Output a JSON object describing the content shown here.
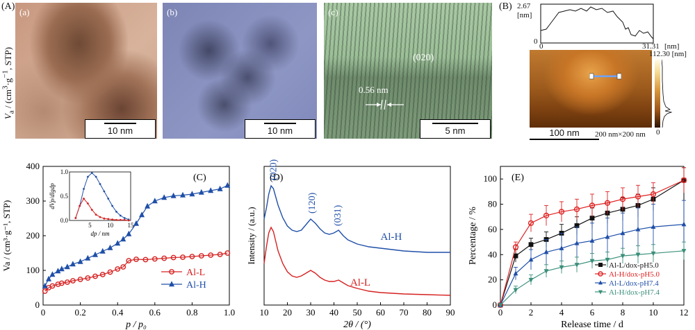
{
  "panel_A_label": "(A)",
  "panel_B_label": "(B)",
  "tem_a": {
    "label": "(a)",
    "scale": "10 nm"
  },
  "tem_b": {
    "label": "(b)",
    "scale": "10 nm"
  },
  "tem_c": {
    "label": "(c)",
    "scale": "5 nm",
    "plane": "(020)",
    "spacing": "0.56 nm"
  },
  "afm": {
    "profile_max": "2.67",
    "profile_unit": "[nm]",
    "profile_zero": "0",
    "profile_x0": "0",
    "profile_xmax": "31.31",
    "profile_xunit": "[nm]",
    "colorbar_max": "112.30 [nm]",
    "colorbar_min": "0",
    "scale": "100 nm",
    "size": "200 nm×200 nm"
  },
  "chart_data": [
    {
      "id": "C",
      "type": "line",
      "panel_label": "(C)",
      "xlabel": "p / p0",
      "ylabel": "Va / (cm3·g−1, STP)",
      "xlim": [
        0,
        1.0
      ],
      "ylim": [
        0,
        400
      ],
      "xticks": [
        "0",
        "0.2",
        "0.4",
        "0.6",
        "0.8",
        "1.0"
      ],
      "yticks": [
        "0",
        "100",
        "200",
        "300",
        "400"
      ],
      "legend": "bottom-right",
      "series": [
        {
          "name": "Al-L",
          "color": "#d62020",
          "x": [
            0.01,
            0.03,
            0.05,
            0.08,
            0.1,
            0.13,
            0.16,
            0.2,
            0.24,
            0.28,
            0.32,
            0.36,
            0.4,
            0.43,
            0.46,
            0.5,
            0.55,
            0.6,
            0.65,
            0.7,
            0.75,
            0.8,
            0.85,
            0.9,
            0.95,
            0.99
          ],
          "y": [
            40,
            50,
            55,
            60,
            63,
            66,
            70,
            74,
            78,
            83,
            88,
            95,
            104,
            110,
            128,
            132,
            131,
            133,
            135,
            137,
            138,
            140,
            142,
            144,
            146,
            150
          ]
        },
        {
          "name": "Al-H",
          "color": "#1f4fa8",
          "x": [
            0.01,
            0.03,
            0.05,
            0.08,
            0.1,
            0.13,
            0.16,
            0.2,
            0.24,
            0.28,
            0.32,
            0.36,
            0.4,
            0.43,
            0.46,
            0.5,
            0.53,
            0.56,
            0.6,
            0.65,
            0.7,
            0.75,
            0.8,
            0.85,
            0.9,
            0.95,
            0.99
          ],
          "y": [
            55,
            75,
            88,
            98,
            104,
            110,
            118,
            125,
            135,
            145,
            155,
            165,
            178,
            190,
            205,
            235,
            260,
            285,
            300,
            310,
            315,
            317,
            320,
            325,
            330,
            335,
            345
          ]
        }
      ],
      "inset": {
        "xlabel": "dp / nm",
        "ylabel": "dVp/dlgdp",
        "xlim": [
          0,
          15
        ],
        "ylim": [
          0,
          1.0
        ],
        "xticks": [
          "5",
          "10",
          "15"
        ],
        "yticks": [
          "0.0",
          "0.5",
          "1.0"
        ],
        "series": [
          {
            "name": "Al-H",
            "color": "#1f4fa8",
            "x": [
              1.5,
              2.5,
              3.5,
              4.5,
              5.5,
              6.5,
              7.5,
              8.5,
              9.5,
              10.5,
              11.5,
              12.5,
              13.5,
              14.5
            ],
            "y": [
              0.05,
              0.3,
              0.65,
              0.9,
              0.98,
              0.9,
              0.75,
              0.6,
              0.45,
              0.3,
              0.18,
              0.1,
              0.05,
              0.02
            ]
          },
          {
            "name": "Al-L",
            "color": "#d62020",
            "x": [
              1.5,
              2.5,
              3.5,
              4.5,
              5.5,
              6.5,
              7.5,
              8.5,
              9.5,
              10.5,
              11.5,
              12.5,
              13.5,
              14.5
            ],
            "y": [
              0.05,
              0.3,
              0.45,
              0.35,
              0.22,
              0.12,
              0.07,
              0.04,
              0.03,
              0.02,
              0.01,
              0.01,
              0.01,
              0.0
            ]
          }
        ]
      }
    },
    {
      "id": "D",
      "type": "line",
      "panel_label": "(D)",
      "xlabel": "2θ / (°)",
      "ylabel": "Intensity / (a.u.)",
      "xlim": [
        10,
        90
      ],
      "xticks": [
        "10",
        "20",
        "30",
        "40",
        "50",
        "60",
        "70",
        "80",
        "90"
      ],
      "annotations": [
        "(020)",
        "(120)",
        "(031)"
      ],
      "series": [
        {
          "name": "Al-H",
          "color": "#1f4fa8",
          "x": [
            10,
            11,
            12,
            13,
            14,
            15,
            16,
            18,
            20,
            22,
            24,
            26,
            28,
            30,
            32,
            34,
            36,
            38,
            40,
            42,
            44,
            46,
            50,
            55,
            60,
            70,
            80,
            90
          ],
          "y": [
            0.62,
            0.7,
            0.8,
            0.86,
            0.84,
            0.78,
            0.72,
            0.63,
            0.57,
            0.54,
            0.53,
            0.54,
            0.58,
            0.62,
            0.59,
            0.55,
            0.52,
            0.51,
            0.52,
            0.54,
            0.5,
            0.47,
            0.44,
            0.42,
            0.41,
            0.39,
            0.38,
            0.38
          ]
        },
        {
          "name": "Al-L",
          "color": "#d62020",
          "x": [
            10,
            11,
            12,
            13,
            14,
            15,
            16,
            18,
            20,
            22,
            24,
            26,
            28,
            30,
            32,
            34,
            36,
            38,
            40,
            42,
            44,
            46,
            50,
            55,
            60,
            70,
            80,
            90
          ],
          "y": [
            0.3,
            0.42,
            0.52,
            0.56,
            0.53,
            0.46,
            0.39,
            0.3,
            0.24,
            0.21,
            0.2,
            0.21,
            0.23,
            0.25,
            0.23,
            0.2,
            0.18,
            0.17,
            0.17,
            0.18,
            0.16,
            0.14,
            0.12,
            0.1,
            0.09,
            0.08,
            0.075,
            0.07
          ]
        }
      ]
    },
    {
      "id": "E",
      "type": "line",
      "panel_label": "(E)",
      "xlabel": "Release time / d",
      "ylabel": "Percentage / %",
      "xlim": [
        0,
        12
      ],
      "ylim": [
        0,
        110
      ],
      "xticks": [
        "0",
        "2",
        "4",
        "6",
        "8",
        "10",
        "12"
      ],
      "yticks": [
        "0",
        "20",
        "40",
        "60",
        "80",
        "100"
      ],
      "legend": "bottom-right",
      "series": [
        {
          "name": "Al-L/dox-pH5.0",
          "color": "#111111",
          "marker": "square",
          "x": [
            0,
            1,
            2,
            3,
            4,
            5,
            6,
            7,
            8,
            9,
            10,
            12
          ],
          "y": [
            0,
            39,
            48,
            52,
            57,
            63,
            69,
            73,
            76,
            79,
            84,
            99
          ],
          "err": [
            0,
            5,
            5,
            6,
            7,
            7,
            8,
            8,
            9,
            9,
            9,
            10
          ]
        },
        {
          "name": "Al-H/dox-pH5.0",
          "color": "#e02020",
          "marker": "circle",
          "x": [
            0,
            1,
            2,
            3,
            4,
            5,
            6,
            7,
            8,
            9,
            10,
            12
          ],
          "y": [
            0,
            46,
            65,
            71,
            74,
            76,
            79,
            81,
            84,
            86,
            88,
            99
          ],
          "err": [
            0,
            4,
            7,
            8,
            8,
            8,
            9,
            9,
            9,
            9,
            9,
            10
          ]
        },
        {
          "name": "Al-L/dox-pH7.4",
          "color": "#1f4fa8",
          "marker": "triangle",
          "x": [
            0,
            1,
            2,
            3,
            4,
            5,
            6,
            7,
            8,
            9,
            10,
            12
          ],
          "y": [
            0,
            25,
            36,
            42,
            45,
            49,
            51,
            54,
            57,
            60,
            62,
            64
          ],
          "err": [
            0,
            5,
            8,
            10,
            12,
            13,
            14,
            15,
            16,
            17,
            18,
            19
          ]
        },
        {
          "name": "Al-H/dox-pH7.4",
          "color": "#3a8f7a",
          "marker": "triangle-down",
          "x": [
            0,
            1,
            2,
            3,
            4,
            5,
            6,
            7,
            8,
            9,
            10,
            12
          ],
          "y": [
            0,
            12,
            20,
            27,
            30,
            32,
            35,
            36,
            39,
            40,
            41,
            43
          ],
          "err": [
            0,
            3,
            4,
            5,
            5,
            6,
            6,
            6,
            6,
            7,
            7,
            7
          ]
        }
      ]
    }
  ]
}
